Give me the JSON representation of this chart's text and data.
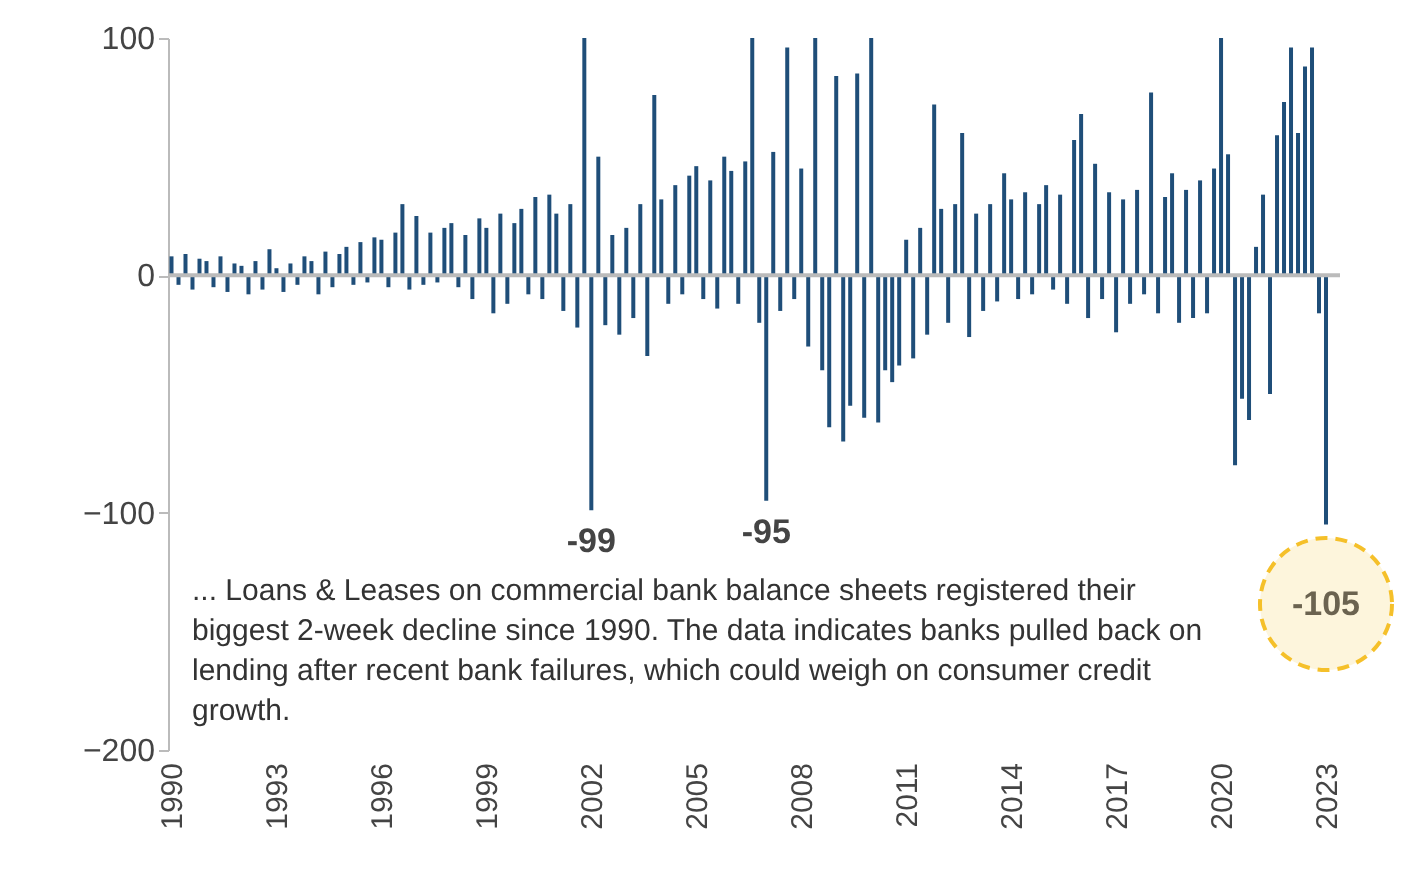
{
  "chart_data": {
    "type": "bar",
    "color": "#1f4e79",
    "x": [
      1990.0,
      1990.2,
      1990.4,
      1990.6,
      1990.8,
      1991.0,
      1991.2,
      1991.4,
      1991.6,
      1991.8,
      1992.0,
      1992.2,
      1992.4,
      1992.6,
      1992.8,
      1993.0,
      1993.2,
      1993.4,
      1993.6,
      1993.8,
      1994.0,
      1994.2,
      1994.4,
      1994.6,
      1994.8,
      1995.0,
      1995.2,
      1995.4,
      1995.6,
      1995.8,
      1996.0,
      1996.2,
      1996.4,
      1996.6,
      1996.8,
      1997.0,
      1997.2,
      1997.4,
      1997.6,
      1997.8,
      1998.0,
      1998.2,
      1998.4,
      1998.6,
      1998.8,
      1999.0,
      1999.2,
      1999.4,
      1999.6,
      1999.8,
      2000.0,
      2000.2,
      2000.4,
      2000.6,
      2000.8,
      2001.0,
      2001.2,
      2001.4,
      2001.6,
      2001.8,
      2002.0,
      2002.2,
      2002.4,
      2002.6,
      2002.8,
      2003.0,
      2003.2,
      2003.4,
      2003.6,
      2003.8,
      2004.0,
      2004.2,
      2004.4,
      2004.6,
      2004.8,
      2005.0,
      2005.2,
      2005.4,
      2005.6,
      2005.8,
      2006.0,
      2006.2,
      2006.4,
      2006.6,
      2006.8,
      2007.0,
      2007.2,
      2007.4,
      2007.6,
      2007.8,
      2008.0,
      2008.2,
      2008.4,
      2008.6,
      2008.8,
      2009.0,
      2009.2,
      2009.4,
      2009.6,
      2009.8,
      2010.0,
      2010.2,
      2010.4,
      2010.6,
      2010.8,
      2011.0,
      2011.2,
      2011.4,
      2011.6,
      2011.8,
      2012.0,
      2012.2,
      2012.4,
      2012.6,
      2012.8,
      2013.0,
      2013.2,
      2013.4,
      2013.6,
      2013.8,
      2014.0,
      2014.2,
      2014.4,
      2014.6,
      2014.8,
      2015.0,
      2015.2,
      2015.4,
      2015.6,
      2015.8,
      2016.0,
      2016.2,
      2016.4,
      2016.6,
      2016.8,
      2017.0,
      2017.2,
      2017.4,
      2017.6,
      2017.8,
      2018.0,
      2018.2,
      2018.4,
      2018.6,
      2018.8,
      2019.0,
      2019.2,
      2019.4,
      2019.6,
      2019.8,
      2020.0,
      2020.2,
      2020.4,
      2020.6,
      2020.8,
      2021.0,
      2021.2,
      2021.4,
      2021.6,
      2021.8,
      2022.0,
      2022.2,
      2022.4,
      2022.6,
      2022.8,
      2023.0
    ],
    "values": [
      8,
      -4,
      9,
      -6,
      7,
      6,
      -5,
      8,
      -7,
      5,
      4,
      -8,
      6,
      -6,
      11,
      3,
      -7,
      5,
      -4,
      8,
      6,
      -8,
      10,
      -5,
      9,
      12,
      -4,
      14,
      -3,
      16,
      15,
      -5,
      18,
      30,
      -6,
      25,
      -4,
      18,
      -3,
      20,
      22,
      -5,
      17,
      -10,
      24,
      20,
      -16,
      26,
      -12,
      22,
      28,
      -8,
      33,
      -10,
      34,
      26,
      -15,
      30,
      -22,
      100,
      -99,
      50,
      -21,
      17,
      -25,
      20,
      -18,
      30,
      -34,
      76,
      32,
      -12,
      38,
      -8,
      42,
      46,
      -10,
      40,
      -14,
      50,
      44,
      -12,
      48,
      100,
      -20,
      -95,
      52,
      -15,
      96,
      -10,
      45,
      -30,
      100,
      -40,
      -64,
      84,
      -70,
      -55,
      85,
      -60,
      100,
      -62,
      -40,
      -45,
      -38,
      15,
      -35,
      20,
      -25,
      72,
      28,
      -20,
      30,
      60,
      -26,
      26,
      -15,
      30,
      -11,
      43,
      32,
      -10,
      35,
      -8,
      30,
      38,
      -6,
      34,
      -12,
      57,
      68,
      -18,
      47,
      -10,
      35,
      -24,
      32,
      -12,
      36,
      -8,
      77,
      -16,
      33,
      43,
      -20,
      36,
      -18,
      40,
      -16,
      45,
      100,
      51,
      -80,
      -52,
      -61,
      12,
      34,
      -50,
      59,
      73,
      96,
      60,
      88,
      96,
      -16,
      -105
    ],
    "xlim": [
      1989.9,
      2023.4
    ],
    "xticks": [
      1990,
      1993,
      1996,
      1999,
      2002,
      2005,
      2008,
      2011,
      2014,
      2017,
      2020,
      2023
    ],
    "ylim": [
      -200,
      100
    ],
    "yticks": [
      -200,
      -100,
      0,
      100
    ],
    "ref_lines": [
      {
        "axis": "y",
        "value": 0,
        "color": "#bbbbbb"
      }
    ],
    "annotations": [
      {
        "text": "-99",
        "x": 2002.0,
        "y": -99
      },
      {
        "text": "-95",
        "x": 2007.0,
        "y": -95
      },
      {
        "text": "-105",
        "x": 2023.0,
        "y": -105
      },
      "... Loans & Leases on commercial bank balance sheets registered their biggest 2-week decline since 1990. The data indicates banks pulled back on lending after recent bank failures, which could weigh on consumer credit growth."
    ]
  }
}
